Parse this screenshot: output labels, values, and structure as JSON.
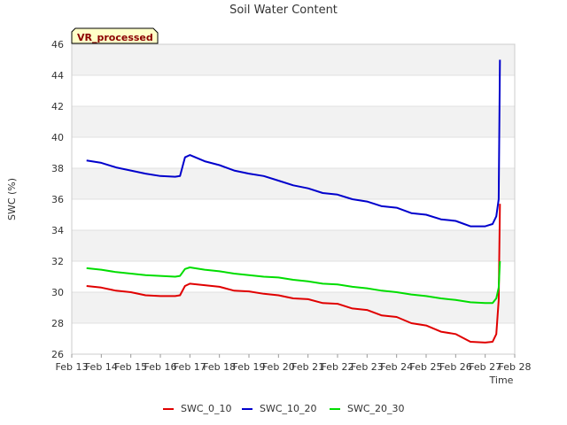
{
  "chart_data": {
    "type": "line",
    "title": "Soil Water Content",
    "badge": "VR_processed",
    "xlabel": "Time",
    "ylabel": "SWC (%)",
    "ylim": [
      26,
      46
    ],
    "xlim": [
      "2024-02-13",
      "2024-02-28"
    ],
    "yticks": [
      26,
      28,
      30,
      32,
      34,
      36,
      38,
      40,
      42,
      44,
      46
    ],
    "xtick_labels": [
      "Feb 13",
      "Feb 14",
      "Feb 15",
      "Feb 16",
      "Feb 17",
      "Feb 18",
      "Feb 19",
      "Feb 20",
      "Feb 21",
      "Feb 22",
      "Feb 23",
      "Feb 24",
      "Feb 25",
      "Feb 26",
      "Feb 27",
      "Feb 28"
    ],
    "grid": true,
    "legend_position": "bottom",
    "series": [
      {
        "name": "SWC_0_10",
        "color": "#e00000",
        "points": [
          [
            "2024-02-13 12:00",
            30.4
          ],
          [
            "2024-02-14 00:00",
            30.3
          ],
          [
            "2024-02-14 12:00",
            30.1
          ],
          [
            "2024-02-15 00:00",
            30.0
          ],
          [
            "2024-02-15 12:00",
            29.8
          ],
          [
            "2024-02-16 00:00",
            29.75
          ],
          [
            "2024-02-16 12:00",
            29.75
          ],
          [
            "2024-02-16 16:00",
            29.8
          ],
          [
            "2024-02-16 20:00",
            30.4
          ],
          [
            "2024-02-17 00:00",
            30.55
          ],
          [
            "2024-02-17 12:00",
            30.45
          ],
          [
            "2024-02-18 00:00",
            30.35
          ],
          [
            "2024-02-18 12:00",
            30.1
          ],
          [
            "2024-02-19 00:00",
            30.05
          ],
          [
            "2024-02-19 12:00",
            29.9
          ],
          [
            "2024-02-20 00:00",
            29.8
          ],
          [
            "2024-02-20 12:00",
            29.6
          ],
          [
            "2024-02-21 00:00",
            29.55
          ],
          [
            "2024-02-21 12:00",
            29.3
          ],
          [
            "2024-02-22 00:00",
            29.25
          ],
          [
            "2024-02-22 12:00",
            28.95
          ],
          [
            "2024-02-23 00:00",
            28.85
          ],
          [
            "2024-02-23 12:00",
            28.5
          ],
          [
            "2024-02-24 00:00",
            28.4
          ],
          [
            "2024-02-24 12:00",
            28.0
          ],
          [
            "2024-02-25 00:00",
            27.85
          ],
          [
            "2024-02-25 12:00",
            27.45
          ],
          [
            "2024-02-26 00:00",
            27.3
          ],
          [
            "2024-02-26 12:00",
            26.8
          ],
          [
            "2024-02-27 00:00",
            26.75
          ],
          [
            "2024-02-27 06:00",
            26.8
          ],
          [
            "2024-02-27 09:00",
            27.3
          ],
          [
            "2024-02-27 11:00",
            29.5
          ],
          [
            "2024-02-27 12:00",
            35.7
          ]
        ]
      },
      {
        "name": "SWC_10_20",
        "color": "#0000cc",
        "points": [
          [
            "2024-02-13 12:00",
            38.5
          ],
          [
            "2024-02-14 00:00",
            38.35
          ],
          [
            "2024-02-14 12:00",
            38.05
          ],
          [
            "2024-02-15 00:00",
            37.85
          ],
          [
            "2024-02-15 12:00",
            37.65
          ],
          [
            "2024-02-16 00:00",
            37.5
          ],
          [
            "2024-02-16 12:00",
            37.45
          ],
          [
            "2024-02-16 16:00",
            37.5
          ],
          [
            "2024-02-16 20:00",
            38.7
          ],
          [
            "2024-02-17 00:00",
            38.85
          ],
          [
            "2024-02-17 12:00",
            38.45
          ],
          [
            "2024-02-18 00:00",
            38.2
          ],
          [
            "2024-02-18 12:00",
            37.85
          ],
          [
            "2024-02-19 00:00",
            37.65
          ],
          [
            "2024-02-19 12:00",
            37.5
          ],
          [
            "2024-02-20 00:00",
            37.2
          ],
          [
            "2024-02-20 12:00",
            36.9
          ],
          [
            "2024-02-21 00:00",
            36.7
          ],
          [
            "2024-02-21 12:00",
            36.4
          ],
          [
            "2024-02-22 00:00",
            36.3
          ],
          [
            "2024-02-22 12:00",
            36.0
          ],
          [
            "2024-02-23 00:00",
            35.85
          ],
          [
            "2024-02-23 12:00",
            35.55
          ],
          [
            "2024-02-24 00:00",
            35.45
          ],
          [
            "2024-02-24 12:00",
            35.1
          ],
          [
            "2024-02-25 00:00",
            35.0
          ],
          [
            "2024-02-25 12:00",
            34.7
          ],
          [
            "2024-02-26 00:00",
            34.6
          ],
          [
            "2024-02-26 12:00",
            34.25
          ],
          [
            "2024-02-27 00:00",
            34.25
          ],
          [
            "2024-02-27 06:00",
            34.4
          ],
          [
            "2024-02-27 09:00",
            34.9
          ],
          [
            "2024-02-27 11:00",
            36.0
          ],
          [
            "2024-02-27 12:00",
            45.0
          ]
        ]
      },
      {
        "name": "SWC_20_30",
        "color": "#00dd00",
        "points": [
          [
            "2024-02-13 12:00",
            31.55
          ],
          [
            "2024-02-14 00:00",
            31.45
          ],
          [
            "2024-02-14 12:00",
            31.3
          ],
          [
            "2024-02-15 00:00",
            31.2
          ],
          [
            "2024-02-15 12:00",
            31.1
          ],
          [
            "2024-02-16 00:00",
            31.05
          ],
          [
            "2024-02-16 12:00",
            31.0
          ],
          [
            "2024-02-16 16:00",
            31.05
          ],
          [
            "2024-02-16 20:00",
            31.5
          ],
          [
            "2024-02-17 00:00",
            31.6
          ],
          [
            "2024-02-17 12:00",
            31.45
          ],
          [
            "2024-02-18 00:00",
            31.35
          ],
          [
            "2024-02-18 12:00",
            31.2
          ],
          [
            "2024-02-19 00:00",
            31.1
          ],
          [
            "2024-02-19 12:00",
            31.0
          ],
          [
            "2024-02-20 00:00",
            30.95
          ],
          [
            "2024-02-20 12:00",
            30.8
          ],
          [
            "2024-02-21 00:00",
            30.7
          ],
          [
            "2024-02-21 12:00",
            30.55
          ],
          [
            "2024-02-22 00:00",
            30.5
          ],
          [
            "2024-02-22 12:00",
            30.35
          ],
          [
            "2024-02-23 00:00",
            30.25
          ],
          [
            "2024-02-23 12:00",
            30.1
          ],
          [
            "2024-02-24 00:00",
            30.0
          ],
          [
            "2024-02-24 12:00",
            29.85
          ],
          [
            "2024-02-25 00:00",
            29.75
          ],
          [
            "2024-02-25 12:00",
            29.6
          ],
          [
            "2024-02-26 00:00",
            29.5
          ],
          [
            "2024-02-26 12:00",
            29.35
          ],
          [
            "2024-02-27 00:00",
            29.3
          ],
          [
            "2024-02-27 06:00",
            29.3
          ],
          [
            "2024-02-27 09:00",
            29.6
          ],
          [
            "2024-02-27 11:00",
            30.3
          ],
          [
            "2024-02-27 12:00",
            32.0
          ]
        ]
      }
    ]
  }
}
